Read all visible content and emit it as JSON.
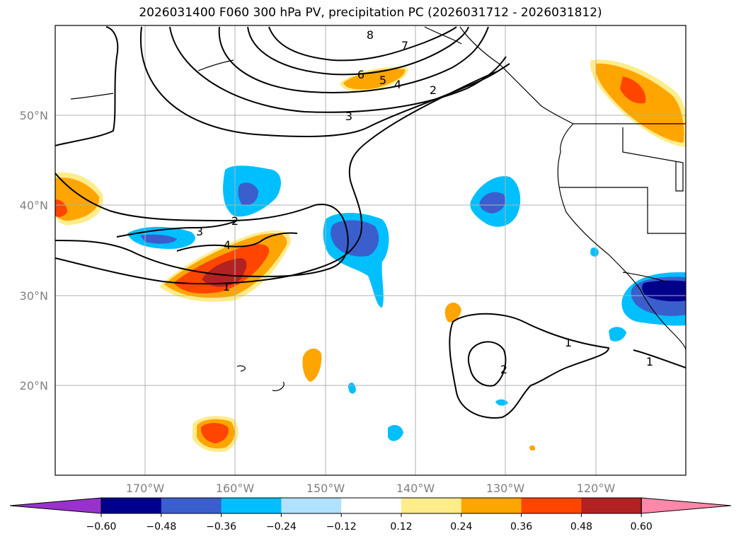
{
  "title": "2026031400 F060 300 hPa PV, precipitation PC (2026031712 - 2026031812)",
  "axes": {
    "lat_labels": [
      "20°N",
      "30°N",
      "40°N",
      "50°N"
    ],
    "lon_labels": [
      "170°W",
      "160°W",
      "150°W",
      "140°W",
      "130°W",
      "120°W"
    ]
  },
  "pv_contour_labels": [
    "8",
    "7",
    "6",
    "5",
    "4",
    "3",
    "2",
    "3",
    "2",
    "4",
    "1",
    "2",
    "1",
    "1"
  ],
  "colorbar": {
    "ticks": [
      "−0.60",
      "−0.48",
      "−0.36",
      "−0.24",
      "−0.12",
      "0.12",
      "0.24",
      "0.36",
      "0.48",
      "0.60"
    ],
    "colors": [
      "#9932cc",
      "#00008b",
      "#3a5fcd",
      "#00bfff",
      "#b0e2ff",
      "#ffffff",
      "#ffec8b",
      "#ffa500",
      "#ff4500",
      "#b22222",
      "#ff88aa"
    ]
  }
}
